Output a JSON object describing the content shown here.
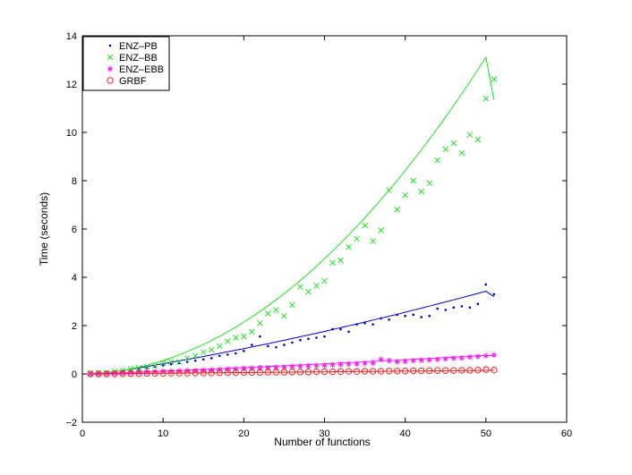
{
  "chart_data": {
    "type": "scatter",
    "title": "",
    "xlabel": "Number of functions",
    "ylabel": "Time (seconds)",
    "xlim": [
      0,
      60
    ],
    "ylim": [
      -2,
      14
    ],
    "xticks": [
      0,
      10,
      20,
      30,
      40,
      50,
      60
    ],
    "yticks": [
      -2,
      0,
      2,
      4,
      6,
      8,
      10,
      12,
      14
    ],
    "grid": false,
    "legend_position": "top-left",
    "x": [
      1,
      2,
      3,
      4,
      5,
      6,
      7,
      8,
      9,
      10,
      11,
      12,
      13,
      14,
      15,
      16,
      17,
      18,
      19,
      20,
      21,
      22,
      23,
      24,
      25,
      26,
      27,
      28,
      29,
      30,
      31,
      32,
      33,
      34,
      35,
      36,
      37,
      38,
      39,
      40,
      41,
      42,
      43,
      44,
      45,
      46,
      47,
      48,
      49,
      50,
      51
    ],
    "series": [
      {
        "name": "ENZ–PB",
        "color": "#0000cc",
        "marker": "dot",
        "values": [
          0.0,
          0.02,
          0.05,
          0.05,
          0.1,
          0.15,
          0.2,
          0.25,
          0.3,
          0.35,
          0.4,
          0.45,
          0.5,
          0.55,
          0.6,
          0.65,
          0.75,
          0.8,
          0.85,
          0.95,
          1.2,
          1.55,
          1.15,
          1.1,
          1.2,
          1.3,
          1.4,
          1.45,
          1.5,
          1.55,
          1.85,
          1.85,
          1.75,
          2.05,
          2.1,
          2.05,
          2.3,
          2.25,
          2.45,
          2.4,
          2.45,
          2.35,
          2.4,
          2.7,
          2.65,
          2.75,
          2.8,
          2.75,
          2.9,
          3.7,
          3.3
        ],
        "trend": [
          0.0,
          0.016,
          0.05,
          0.095,
          0.145,
          0.198,
          0.253,
          0.309,
          0.366,
          0.423,
          0.481,
          0.541,
          0.601,
          0.662,
          0.724,
          0.787,
          0.851,
          0.916,
          0.982,
          1.048,
          1.116,
          1.184,
          1.253,
          1.323,
          1.394,
          1.466,
          1.539,
          1.612,
          1.686,
          1.761,
          1.837,
          1.914,
          1.991,
          2.069,
          2.148,
          2.228,
          2.309,
          2.39,
          2.472,
          2.555,
          2.639,
          2.723,
          2.808,
          2.894,
          2.98,
          3.067,
          3.155,
          3.243,
          3.332,
          3.422,
          3.2
        ]
      },
      {
        "name": "ENZ–BB",
        "color": "#22dd22",
        "marker": "x",
        "values": [
          0.02,
          0.05,
          0.05,
          0.1,
          0.15,
          0.2,
          0.25,
          0.3,
          0.35,
          0.45,
          0.5,
          0.5,
          0.65,
          0.75,
          0.9,
          1.0,
          1.15,
          1.35,
          1.5,
          1.55,
          1.75,
          2.1,
          2.5,
          2.65,
          2.4,
          2.85,
          3.6,
          3.4,
          3.65,
          3.85,
          4.6,
          4.7,
          5.25,
          5.6,
          6.15,
          5.5,
          5.95,
          7.6,
          6.8,
          7.4,
          8.0,
          7.55,
          7.9,
          8.85,
          9.3,
          9.55,
          9.15,
          9.9,
          9.7,
          11.4,
          12.2
        ],
        "trend": [
          0.0,
          0.022,
          0.052,
          0.093,
          0.144,
          0.206,
          0.277,
          0.359,
          0.451,
          0.553,
          0.666,
          0.789,
          0.922,
          1.065,
          1.219,
          1.383,
          1.558,
          1.743,
          1.938,
          2.143,
          2.359,
          2.585,
          2.821,
          3.068,
          3.325,
          3.592,
          3.87,
          4.158,
          4.457,
          4.765,
          5.084,
          5.414,
          5.754,
          6.104,
          6.464,
          6.835,
          7.216,
          7.607,
          8.009,
          8.421,
          8.843,
          9.276,
          9.719,
          10.172,
          10.636,
          11.11,
          11.594,
          12.088,
          12.593,
          13.109,
          11.35
        ]
      },
      {
        "name": "ENZ–EBB",
        "color": "#ee22ee",
        "marker": "asterisk",
        "values": [
          0.0,
          0.01,
          0.02,
          0.03,
          0.04,
          0.05,
          0.06,
          0.07,
          0.08,
          0.1,
          0.1,
          0.12,
          0.13,
          0.14,
          0.15,
          0.16,
          0.18,
          0.19,
          0.2,
          0.22,
          0.23,
          0.25,
          0.26,
          0.27,
          0.28,
          0.3,
          0.32,
          0.33,
          0.34,
          0.36,
          0.38,
          0.4,
          0.41,
          0.42,
          0.44,
          0.46,
          0.6,
          0.55,
          0.5,
          0.52,
          0.55,
          0.57,
          0.58,
          0.6,
          0.62,
          0.65,
          0.66,
          0.7,
          0.72,
          0.75,
          0.78
        ],
        "trend": [
          0.0,
          0.012,
          0.025,
          0.038,
          0.051,
          0.064,
          0.077,
          0.091,
          0.104,
          0.118,
          0.132,
          0.146,
          0.16,
          0.174,
          0.188,
          0.203,
          0.217,
          0.232,
          0.247,
          0.262,
          0.277,
          0.292,
          0.307,
          0.323,
          0.338,
          0.354,
          0.37,
          0.386,
          0.402,
          0.418,
          0.435,
          0.451,
          0.468,
          0.485,
          0.502,
          0.519,
          0.536,
          0.553,
          0.571,
          0.588,
          0.606,
          0.624,
          0.642,
          0.66,
          0.678,
          0.697,
          0.715,
          0.734,
          0.752,
          0.771,
          0.75
        ]
      },
      {
        "name": "GRBF",
        "color": "#ee2222",
        "marker": "circle",
        "values": [
          0.0,
          0.0,
          0.0,
          0.0,
          0.01,
          0.01,
          0.01,
          0.02,
          0.02,
          0.02,
          0.03,
          0.03,
          0.03,
          0.04,
          0.04,
          0.04,
          0.05,
          0.05,
          0.05,
          0.06,
          0.06,
          0.06,
          0.07,
          0.07,
          0.07,
          0.08,
          0.08,
          0.08,
          0.09,
          0.09,
          0.09,
          0.1,
          0.1,
          0.1,
          0.11,
          0.11,
          0.11,
          0.12,
          0.12,
          0.12,
          0.13,
          0.13,
          0.13,
          0.14,
          0.14,
          0.14,
          0.15,
          0.15,
          0.16,
          0.18,
          0.16
        ],
        "trend": [
          0.0,
          0.003,
          0.006,
          0.009,
          0.012,
          0.015,
          0.018,
          0.021,
          0.024,
          0.027,
          0.03,
          0.033,
          0.036,
          0.039,
          0.042,
          0.045,
          0.048,
          0.051,
          0.054,
          0.057,
          0.06,
          0.063,
          0.066,
          0.069,
          0.072,
          0.075,
          0.078,
          0.081,
          0.084,
          0.087,
          0.09,
          0.093,
          0.096,
          0.099,
          0.102,
          0.105,
          0.108,
          0.111,
          0.114,
          0.117,
          0.12,
          0.123,
          0.126,
          0.129,
          0.132,
          0.135,
          0.138,
          0.141,
          0.144,
          0.147,
          0.15
        ]
      }
    ]
  }
}
